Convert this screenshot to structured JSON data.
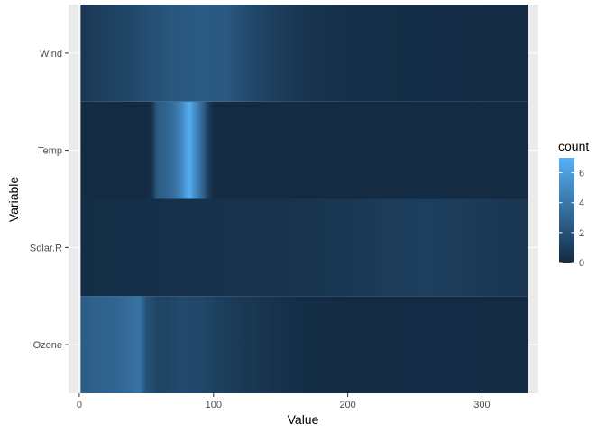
{
  "chart_data": {
    "type": "heatmap",
    "xlabel": "Value",
    "ylabel": "Variable",
    "xlim": [
      -8,
      342
    ],
    "x_ticks": [
      0,
      100,
      200,
      300
    ],
    "x_tick_labels": [
      "0",
      "100",
      "200",
      "300"
    ],
    "categories": [
      "Ozone",
      "Solar.R",
      "Temp",
      "Wind"
    ],
    "x_range": [
      1,
      334
    ],
    "fill_scale": {
      "name": "count",
      "low_color": "#132B43",
      "high_color": "#56B1F7",
      "min": 0,
      "max": 7,
      "breaks": [
        0,
        2,
        4,
        6
      ],
      "break_labels": [
        "0",
        "2",
        "4",
        "6"
      ]
    },
    "series": [
      {
        "name": "Ozone",
        "profile": [
          [
            1,
            2.5
          ],
          [
            10,
            2.8
          ],
          [
            25,
            3.0
          ],
          [
            35,
            3.3
          ],
          [
            45,
            3.8
          ],
          [
            50,
            2.0
          ],
          [
            60,
            1.3
          ],
          [
            75,
            1.6
          ],
          [
            90,
            1.5
          ],
          [
            110,
            0.9
          ],
          [
            130,
            0.6
          ],
          [
            150,
            0.3
          ],
          [
            170,
            0.1
          ],
          [
            200,
            0.05
          ],
          [
            250,
            0.02
          ],
          [
            334,
            0
          ]
        ]
      },
      {
        "name": "Solar.R",
        "profile": [
          [
            1,
            0.1
          ],
          [
            50,
            0.2
          ],
          [
            100,
            0.3
          ],
          [
            150,
            0.4
          ],
          [
            190,
            0.6
          ],
          [
            230,
            0.9
          ],
          [
            260,
            1.0
          ],
          [
            300,
            0.8
          ],
          [
            334,
            0.6
          ]
        ]
      },
      {
        "name": "Temp",
        "profile": [
          [
            1,
            0
          ],
          [
            50,
            0
          ],
          [
            54,
            0.3
          ],
          [
            58,
            2.5
          ],
          [
            65,
            3.0
          ],
          [
            70,
            3.5
          ],
          [
            75,
            4.5
          ],
          [
            78,
            5.5
          ],
          [
            82,
            6.9
          ],
          [
            85,
            5.5
          ],
          [
            88,
            4.5
          ],
          [
            92,
            3.0
          ],
          [
            96,
            1.0
          ],
          [
            100,
            0
          ],
          [
            334,
            0
          ]
        ]
      },
      {
        "name": "Wind",
        "profile": [
          [
            1,
            0.5
          ],
          [
            10,
            0.9
          ],
          [
            30,
            1.3
          ],
          [
            50,
            1.8
          ],
          [
            70,
            2.3
          ],
          [
            90,
            2.5
          ],
          [
            110,
            2.4
          ],
          [
            125,
            1.6
          ],
          [
            150,
            0.9
          ],
          [
            175,
            0.4
          ],
          [
            200,
            0.2
          ],
          [
            250,
            0.1
          ],
          [
            334,
            0
          ]
        ]
      }
    ]
  }
}
